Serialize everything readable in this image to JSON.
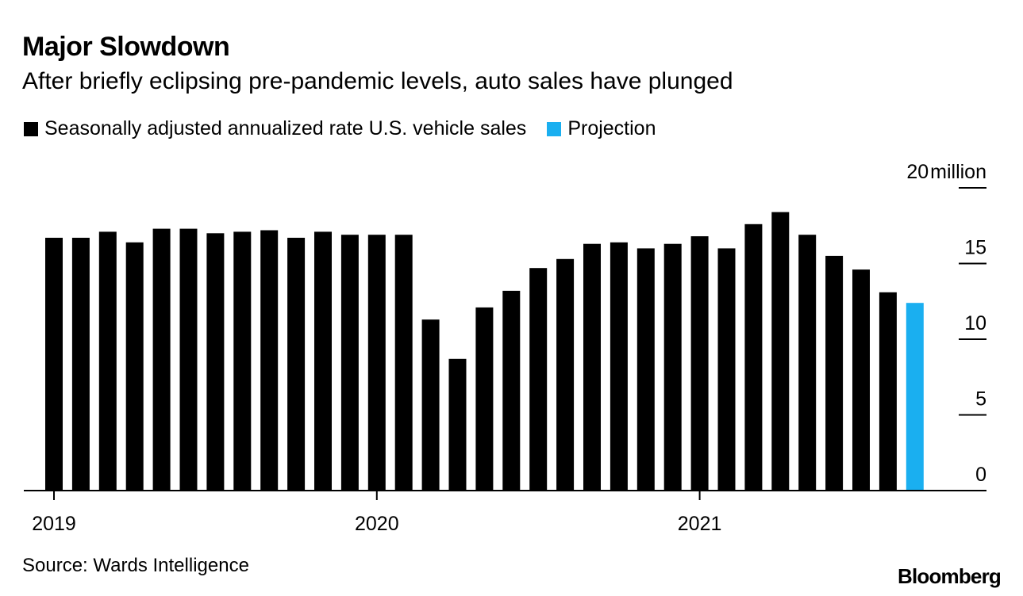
{
  "chart_data": {
    "type": "bar",
    "title": "Major Slowdown",
    "subtitle": "After briefly eclipsing pre-pandemic levels, auto sales have plunged",
    "legend": [
      {
        "label": "Seasonally adjusted annualized rate U.S. vehicle sales",
        "color": "#000000"
      },
      {
        "label": "Projection",
        "color": "#1aaff0"
      }
    ],
    "y_unit_label": "million",
    "y_ticks": [
      0,
      5,
      10,
      15,
      20
    ],
    "ylim": [
      0,
      20
    ],
    "x_ticks": [
      {
        "label": "2019",
        "index": 0
      },
      {
        "label": "2020",
        "index": 12
      },
      {
        "label": "2021",
        "index": 24
      }
    ],
    "series": [
      {
        "name": "Seasonally adjusted annualized rate U.S. vehicle sales",
        "color": "#000000",
        "categories": [
          "Jan 2019",
          "Feb 2019",
          "Mar 2019",
          "Apr 2019",
          "May 2019",
          "Jun 2019",
          "Jul 2019",
          "Aug 2019",
          "Sep 2019",
          "Oct 2019",
          "Nov 2019",
          "Dec 2019",
          "Jan 2020",
          "Feb 2020",
          "Mar 2020",
          "Apr 2020",
          "May 2020",
          "Jun 2020",
          "Jul 2020",
          "Aug 2020",
          "Sep 2020",
          "Oct 2020",
          "Nov 2020",
          "Dec 2020",
          "Jan 2021",
          "Feb 2021",
          "Mar 2021",
          "Apr 2021",
          "May 2021",
          "Jun 2021",
          "Jul 2021",
          "Aug 2021"
        ],
        "values": [
          16.7,
          16.7,
          17.1,
          16.4,
          17.3,
          17.3,
          17.0,
          17.1,
          17.2,
          16.7,
          17.1,
          16.9,
          16.9,
          16.9,
          11.3,
          8.7,
          12.1,
          13.2,
          14.7,
          15.3,
          16.3,
          16.4,
          16.0,
          16.3,
          16.8,
          16.0,
          17.6,
          18.4,
          16.9,
          15.5,
          14.6,
          13.1
        ]
      },
      {
        "name": "Projection",
        "color": "#1aaff0",
        "categories": [
          "Sep 2021"
        ],
        "values": [
          12.4
        ]
      }
    ]
  },
  "source_text": "Source: Wards Intelligence",
  "brand": "Bloomberg"
}
